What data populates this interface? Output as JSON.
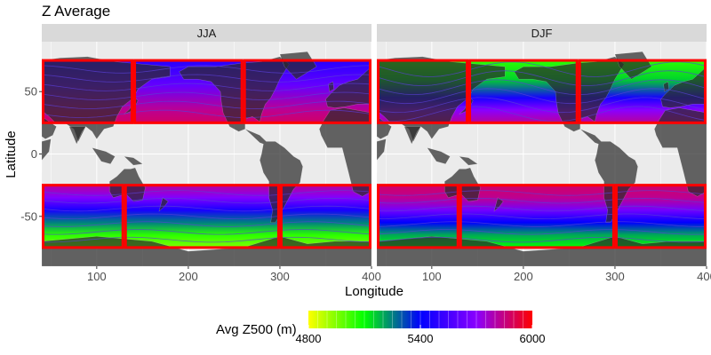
{
  "chart_data": {
    "type": "heatmap",
    "title": "Z Average",
    "xlabel": "Longitude",
    "ylabel": "Latitude",
    "xlim": [
      40,
      400
    ],
    "ylim": [
      -90,
      90
    ],
    "x_ticks": [
      100,
      200,
      300,
      400
    ],
    "y_ticks": [
      50,
      0,
      -50
    ],
    "grid": true,
    "facets": [
      {
        "label": "JJA",
        "boxes": [
          {
            "lon": [
              40,
              140
            ],
            "lat": [
              25,
              75
            ]
          },
          {
            "lon": [
              140,
              260
            ],
            "lat": [
              25,
              75
            ]
          },
          {
            "lon": [
              260,
              400
            ],
            "lat": [
              25,
              75
            ]
          },
          {
            "lon": [
              40,
              130
            ],
            "lat": [
              -75,
              -25
            ]
          },
          {
            "lon": [
              130,
              300
            ],
            "lat": [
              -75,
              -25
            ]
          },
          {
            "lon": [
              300,
              400
            ],
            "lat": [
              -75,
              -25
            ]
          }
        ],
        "z500_profile": [
          {
            "lat": 75,
            "value": 5480
          },
          {
            "lat": 55,
            "value": 5620
          },
          {
            "lat": 35,
            "value": 5830
          },
          {
            "lat": 25,
            "value": 5880
          },
          {
            "lat": -25,
            "value": 5820
          },
          {
            "lat": -35,
            "value": 5680
          },
          {
            "lat": -45,
            "value": 5450
          },
          {
            "lat": -55,
            "value": 5250
          },
          {
            "lat": -65,
            "value": 5050
          },
          {
            "lat": -75,
            "value": 4950
          }
        ]
      },
      {
        "label": "DJF",
        "boxes": [
          {
            "lon": [
              40,
              140
            ],
            "lat": [
              25,
              75
            ]
          },
          {
            "lon": [
              140,
              260
            ],
            "lat": [
              25,
              75
            ]
          },
          {
            "lon": [
              260,
              400
            ],
            "lat": [
              25,
              75
            ]
          },
          {
            "lon": [
              40,
              130
            ],
            "lat": [
              -75,
              -25
            ]
          },
          {
            "lon": [
              130,
              300
            ],
            "lat": [
              -75,
              -25
            ]
          },
          {
            "lon": [
              300,
              400
            ],
            "lat": [
              -75,
              -25
            ]
          }
        ],
        "z500_profile": [
          {
            "lat": 75,
            "value": 5050
          },
          {
            "lat": 60,
            "value": 5150
          },
          {
            "lat": 45,
            "value": 5450
          },
          {
            "lat": 35,
            "value": 5700
          },
          {
            "lat": 25,
            "value": 5820
          },
          {
            "lat": -25,
            "value": 5880
          },
          {
            "lat": -35,
            "value": 5830
          },
          {
            "lat": -45,
            "value": 5650
          },
          {
            "lat": -55,
            "value": 5400
          },
          {
            "lat": -65,
            "value": 5200
          },
          {
            "lat": -75,
            "value": 5100
          }
        ]
      }
    ],
    "legend": {
      "title": "Avg Z500 (m)",
      "placement": "bottom",
      "range": [
        4800,
        6000
      ],
      "breaks": [
        4800,
        5400,
        6000
      ],
      "colors": [
        "#ffff00",
        "#00ff00",
        "#0000ff",
        "#8a00ff",
        "#ff0000"
      ]
    },
    "colors": {
      "box_outline": "#ff0000",
      "panel_background": "#ebebeb",
      "strip_background": "#d9d9d9",
      "grid_line": "#ffffff",
      "land": "#2b2b2b"
    }
  }
}
